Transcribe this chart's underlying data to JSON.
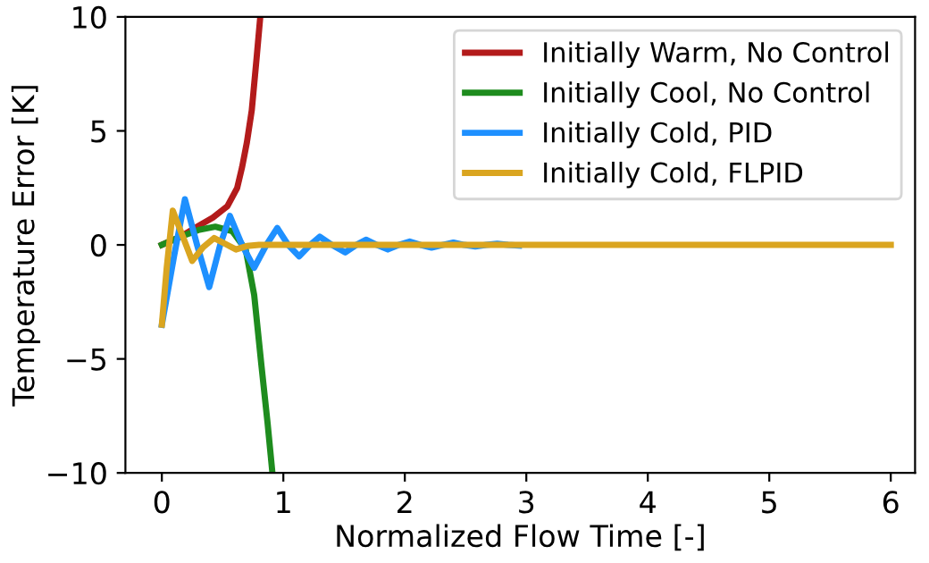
{
  "chart_data": {
    "type": "line",
    "xlabel": "Normalized Flow Time [-]",
    "ylabel": "Temperature Error [K]",
    "xlim": [
      -0.3,
      6.2
    ],
    "ylim": [
      -10,
      10
    ],
    "xticks": [
      0,
      1,
      2,
      3,
      4,
      5,
      6
    ],
    "yticks": [
      -10,
      -5,
      0,
      5,
      10
    ],
    "grid": false,
    "legend": "top right",
    "line_style": "solid",
    "marker": "none",
    "series": [
      {
        "name": "Initially Warm, No Control",
        "color": "#b31b1b",
        "x": [
          0,
          0.15,
          0.29,
          0.42,
          0.54,
          0.62,
          0.66,
          0.7,
          0.74,
          0.78,
          0.81
        ],
        "values": [
          0,
          0.35,
          0.8,
          1.2,
          1.7,
          2.5,
          3.4,
          4.5,
          5.9,
          8.2,
          10
        ]
      },
      {
        "name": "Initially Cool, No Control",
        "color": "#1e8c1e",
        "x": [
          0,
          0.15,
          0.3,
          0.44,
          0.58,
          0.69,
          0.76,
          0.82,
          0.87,
          0.91
        ],
        "values": [
          0,
          0.35,
          0.65,
          0.8,
          0.6,
          -0.2,
          -2.2,
          -5.3,
          -7.8,
          -10
        ]
      },
      {
        "name": "Initially Cold, PID",
        "color": "#1e90ff",
        "x": [
          0,
          0.1,
          0.19,
          0.29,
          0.39,
          0.48,
          0.56,
          0.66,
          0.76,
          0.86,
          0.95,
          1.04,
          1.13,
          1.22,
          1.3,
          1.4,
          1.51,
          1.6,
          1.68,
          1.77,
          1.86,
          1.95,
          2.04,
          2.13,
          2.22,
          2.31,
          2.4,
          2.49,
          2.58,
          2.67,
          2.76,
          2.85,
          2.94
        ],
        "values": [
          -3.5,
          -0.5,
          2.0,
          0,
          -1.85,
          0,
          1.27,
          0,
          -1.0,
          0,
          0.74,
          0,
          -0.5,
          0,
          0.36,
          0,
          -0.33,
          0,
          0.23,
          0,
          -0.2,
          0,
          0.15,
          0,
          -0.12,
          0,
          0.1,
          0,
          -0.07,
          0,
          0.05,
          0,
          -0.03
        ]
      },
      {
        "name": "Initially Cold, FLPID",
        "color": "#daa520",
        "x": [
          0,
          0.04,
          0.09,
          0.17,
          0.25,
          0.34,
          0.43,
          0.52,
          0.61,
          0.7,
          0.8,
          1,
          2,
          3,
          4,
          5,
          6
        ],
        "values": [
          -3.5,
          -1.0,
          1.5,
          0.4,
          -0.7,
          -0.1,
          0.3,
          0.05,
          -0.2,
          -0.05,
          0,
          0,
          0,
          0,
          0,
          0,
          0
        ]
      }
    ]
  }
}
